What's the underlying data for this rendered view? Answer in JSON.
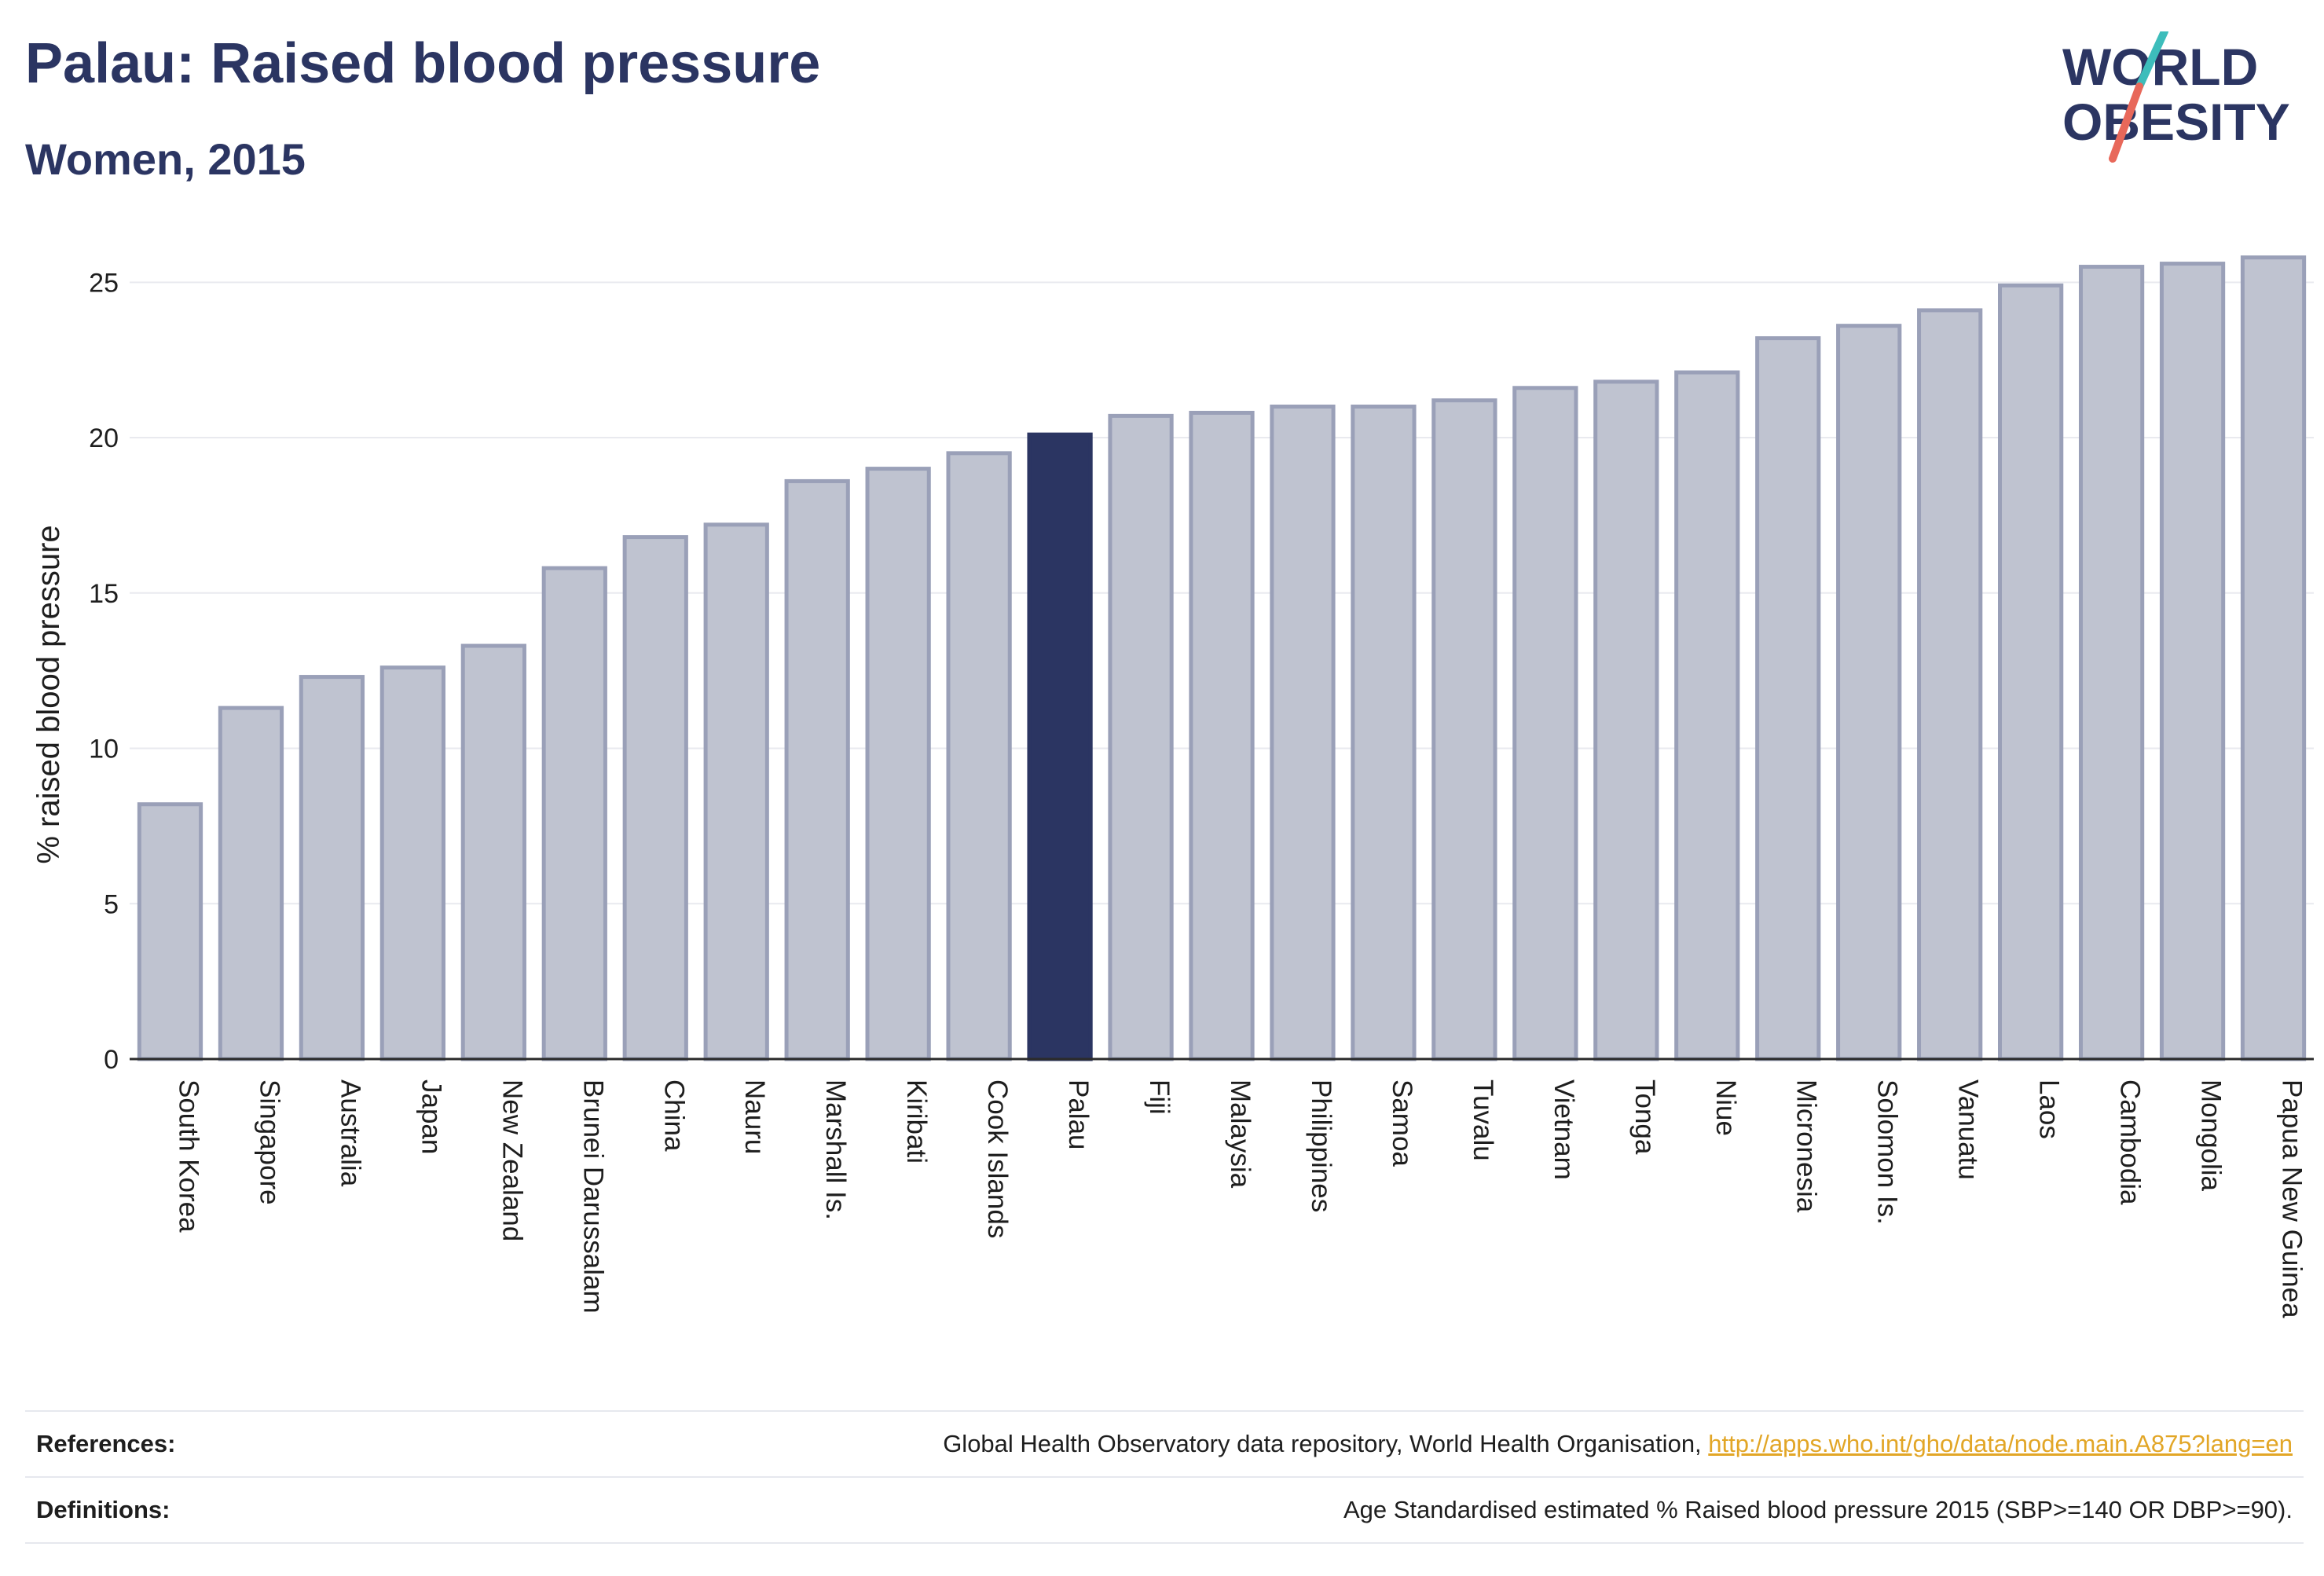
{
  "header": {
    "title": "Palau: Raised blood pressure",
    "subtitle": "Women, 2015"
  },
  "logo": {
    "line1": "WORLD",
    "line2": "OBESITY",
    "colors": {
      "text": "#2b3562",
      "slash_top": "#3dbdbb",
      "slash_bottom": "#e8685a"
    }
  },
  "chart_data": {
    "type": "bar",
    "xlabel": "",
    "ylabel": "% raised blood pressure",
    "ylim": [
      0,
      26.5
    ],
    "yticks": [
      0,
      5,
      10,
      15,
      20,
      25
    ],
    "grid": true,
    "highlight": "Palau",
    "colors": {
      "bar": "#bfc3d0",
      "bar_edge": "#9aa0b8",
      "highlight": "#2b3562"
    },
    "categories": [
      "South Korea",
      "Singapore",
      "Australia",
      "Japan",
      "New Zealand",
      "Brunei Darussalam",
      "China",
      "Nauru",
      "Marshall Is.",
      "Kiribati",
      "Cook Islands",
      "Palau",
      "Fiji",
      "Malaysia",
      "Philippines",
      "Samoa",
      "Tuvalu",
      "Vietnam",
      "Tonga",
      "Niue",
      "Micronesia",
      "Solomon Is.",
      "Vanuatu",
      "Laos",
      "Cambodia",
      "Mongolia",
      "Papua New Guinea"
    ],
    "values": [
      8.2,
      11.3,
      12.3,
      12.6,
      13.3,
      15.8,
      16.8,
      17.2,
      18.6,
      19.0,
      19.5,
      20.1,
      20.7,
      20.8,
      21.0,
      21.0,
      21.2,
      21.6,
      21.8,
      22.1,
      23.2,
      23.6,
      24.1,
      24.9,
      25.5,
      25.6,
      25.8
    ]
  },
  "footer": {
    "references_label": "References:",
    "references_text": "Global Health Observatory data repository, World Health Organisation, ",
    "references_link": "http://apps.who.int/gho/data/node.main.A875?lang=en",
    "definitions_label": "Definitions:",
    "definitions_text": "Age Standardised estimated % Raised blood pressure 2015 (SBP>=140 OR DBP>=90)."
  }
}
